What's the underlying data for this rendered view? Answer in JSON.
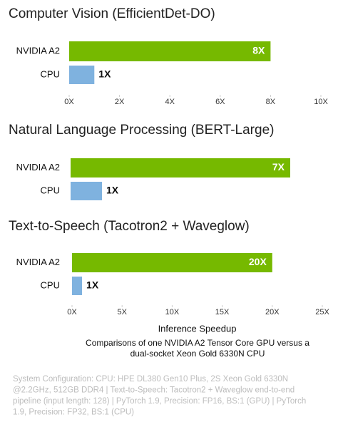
{
  "chart_data": [
    {
      "type": "bar",
      "orientation": "horizontal",
      "title": "Computer Vision (EfficientDet-DO)",
      "categories": [
        "NVIDIA A2",
        "CPU"
      ],
      "values": [
        8,
        1
      ],
      "value_labels": [
        "8X",
        "1X"
      ],
      "colors": [
        "#76b900",
        "#7fb2df"
      ],
      "xlim": [
        0,
        10
      ],
      "xticks": [
        {
          "value": 0,
          "label": "0X"
        },
        {
          "value": 2,
          "label": "2X"
        },
        {
          "value": 4,
          "label": "4X"
        },
        {
          "value": 6,
          "label": "6X"
        },
        {
          "value": 8,
          "label": "8X"
        },
        {
          "value": 10,
          "label": "10X"
        }
      ]
    },
    {
      "type": "bar",
      "orientation": "horizontal",
      "title": "Natural Language Processing (BERT-Large)",
      "categories": [
        "NVIDIA A2",
        "CPU"
      ],
      "values": [
        7,
        1
      ],
      "value_labels": [
        "7X",
        "1X"
      ],
      "colors": [
        "#76b900",
        "#7fb2df"
      ],
      "xlim": [
        0,
        8
      ]
    },
    {
      "type": "bar",
      "orientation": "horizontal",
      "title": "Text-to-Speech (Tacotron2 + Waveglow)",
      "categories": [
        "NVIDIA A2",
        "CPU"
      ],
      "values": [
        20,
        1
      ],
      "value_labels": [
        "20X",
        "1X"
      ],
      "colors": [
        "#76b900",
        "#7fb2df"
      ],
      "xlim": [
        0,
        25
      ],
      "xticks": [
        {
          "value": 0,
          "label": "0X"
        },
        {
          "value": 5,
          "label": "5X"
        },
        {
          "value": 10,
          "label": "10X"
        },
        {
          "value": 15,
          "label": "15X"
        },
        {
          "value": 20,
          "label": "20X"
        },
        {
          "value": 25,
          "label": "25X"
        }
      ],
      "xlabel": "Inference Speedup"
    }
  ],
  "caption": [
    "Comparisons of one NVIDIA A2 Tensor Core GPU versus a",
    "dual-socket Xeon Gold 6330N CPU"
  ],
  "footnote": [
    "System Configuration: CPU: HPE DL380 Gen10 Plus, 2S Xeon Gold 6330N",
    "@2.2GHz, 512GB DDR4  |  Text-to-Speech: Tacotron2 + Waveglow end-to-end",
    "pipeline (input length: 128)  |  PyTorch 1.9, Precision: FP16, BS:1 (GPU)  |  PyTorch",
    "1.9, Precision: FP32, BS:1 (CPU)"
  ]
}
